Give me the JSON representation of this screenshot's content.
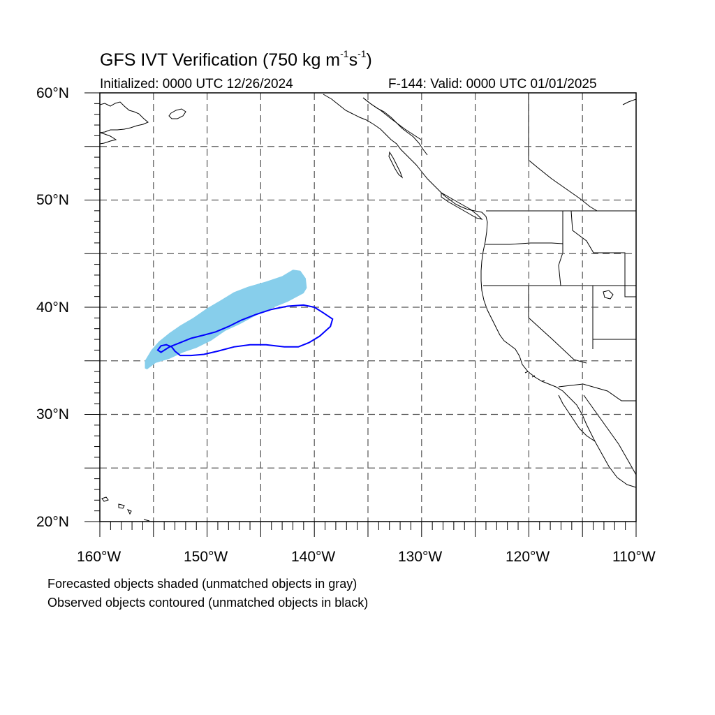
{
  "title": {
    "main": "GFS IVT Verification (750 kg m",
    "sup1": "-1",
    "mid": "s",
    "sup2": "-1",
    "end": ")"
  },
  "initialized": "Initialized: 0000 UTC 12/26/2024",
  "valid": "F-144: Valid: 0000 UTC 01/01/2025",
  "lat_labels": [
    "60°N",
    "50°N",
    "40°N",
    "30°N",
    "20°N"
  ],
  "lon_labels": [
    "160°W",
    "150°W",
    "140°W",
    "130°W",
    "120°W",
    "110°W"
  ],
  "footnotes": [
    "Forecasted objects shaded (unmatched objects in gray)",
    "Observed objects contoured (unmatched objects in black)"
  ],
  "map": {
    "extent": {
      "lon_min": -160,
      "lon_max": -110,
      "lat_min": 20,
      "lat_max": 60
    },
    "grid_interval_deg": 5,
    "colors": {
      "forecast_shade": "#87ceeb",
      "observed_contour": "#0000ff",
      "coast": "#000000",
      "grid": "#555555"
    },
    "forecast_object": [
      [
        -155.6,
        34.2
      ],
      [
        -154.8,
        34.8
      ],
      [
        -153.5,
        35.2
      ],
      [
        -152.2,
        35.8
      ],
      [
        -151.0,
        36.2
      ],
      [
        -149.6,
        36.9
      ],
      [
        -148.3,
        37.8
      ],
      [
        -147.0,
        38.4
      ],
      [
        -145.5,
        39.2
      ],
      [
        -144.0,
        39.9
      ],
      [
        -142.5,
        40.5
      ],
      [
        -141.0,
        41.3
      ],
      [
        -140.7,
        41.8
      ],
      [
        -140.8,
        42.7
      ],
      [
        -141.3,
        43.4
      ],
      [
        -142.0,
        43.5
      ],
      [
        -143.0,
        42.9
      ],
      [
        -144.5,
        42.4
      ],
      [
        -146.2,
        41.9
      ],
      [
        -147.5,
        41.4
      ],
      [
        -148.8,
        40.6
      ],
      [
        -150.0,
        39.9
      ],
      [
        -151.3,
        39.0
      ],
      [
        -152.5,
        38.3
      ],
      [
        -153.5,
        37.6
      ],
      [
        -154.5,
        36.8
      ],
      [
        -155.2,
        36.0
      ],
      [
        -155.8,
        35.0
      ],
      [
        -155.8,
        34.3
      ]
    ],
    "observed_object": [
      [
        -154.3,
        35.8
      ],
      [
        -153.5,
        36.3
      ],
      [
        -152.5,
        36.7
      ],
      [
        -151.5,
        37.1
      ],
      [
        -150.3,
        37.4
      ],
      [
        -149.2,
        37.7
      ],
      [
        -148.0,
        38.2
      ],
      [
        -146.8,
        38.8
      ],
      [
        -145.5,
        39.3
      ],
      [
        -144.0,
        39.8
      ],
      [
        -142.5,
        40.1
      ],
      [
        -141.0,
        40.2
      ],
      [
        -140.0,
        40.0
      ],
      [
        -139.2,
        39.5
      ],
      [
        -138.3,
        38.9
      ],
      [
        -138.5,
        38.2
      ],
      [
        -139.5,
        37.3
      ],
      [
        -140.5,
        36.7
      ],
      [
        -141.5,
        36.3
      ],
      [
        -142.8,
        36.3
      ],
      [
        -144.5,
        36.5
      ],
      [
        -146.0,
        36.5
      ],
      [
        -147.5,
        36.3
      ],
      [
        -149.0,
        35.9
      ],
      [
        -150.3,
        35.6
      ],
      [
        -151.5,
        35.5
      ],
      [
        -152.5,
        35.5
      ],
      [
        -153.0,
        35.9
      ],
      [
        -153.3,
        36.3
      ],
      [
        -153.8,
        36.5
      ],
      [
        -154.3,
        36.4
      ],
      [
        -154.6,
        36.0
      ],
      [
        -154.3,
        35.8
      ]
    ]
  }
}
